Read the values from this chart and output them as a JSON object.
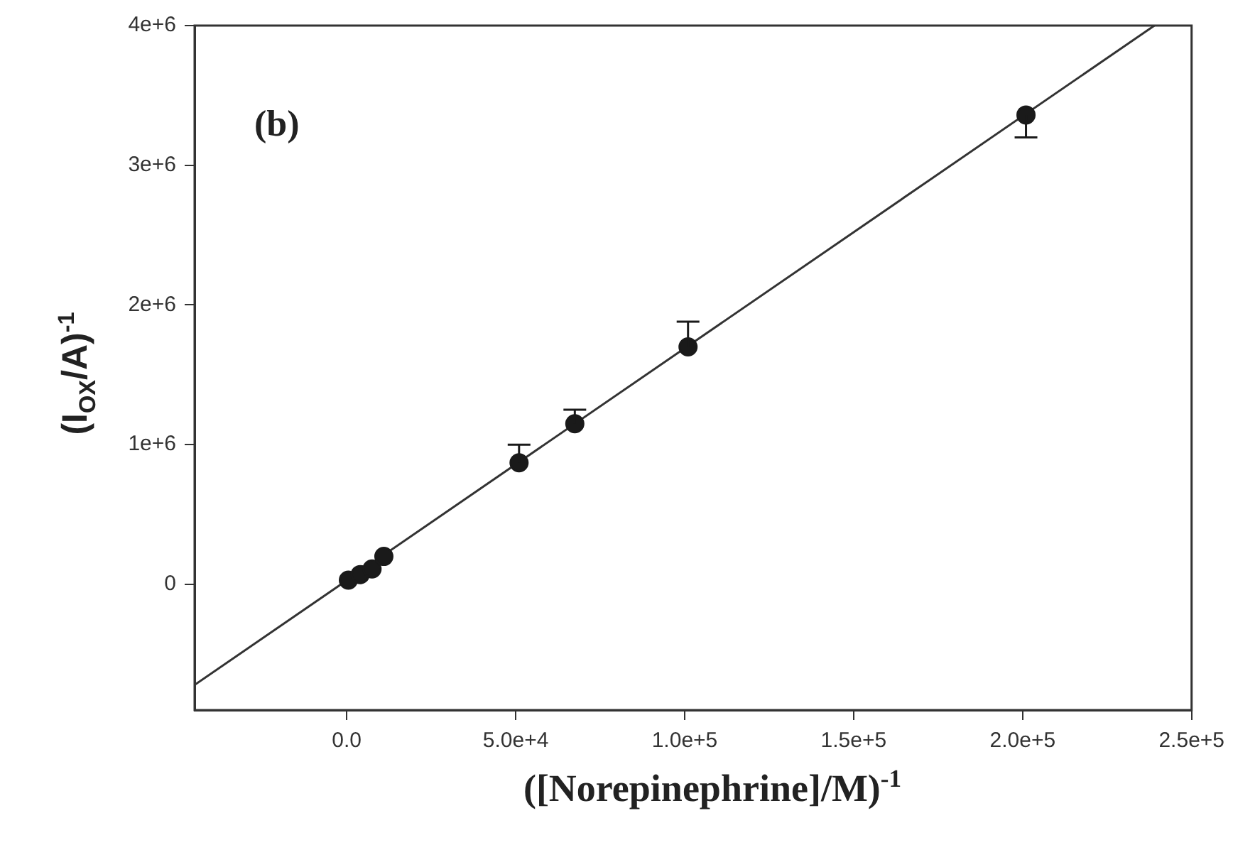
{
  "chart_data": {
    "type": "scatter",
    "xlabel": "([Norepinephrine]/M)$^{-1}$",
    "ylabel": "(I$_{OX}$/A)$^{-1}$",
    "annotations": [
      "(b)"
    ],
    "xlim": [
      -45000,
      250000
    ],
    "xticks": [
      {
        "value": 0,
        "label": "0.0"
      },
      {
        "value": 50000,
        "label": "5.0e+4"
      },
      {
        "value": 100000,
        "label": "1.0e+5"
      },
      {
        "value": 150000,
        "label": "1.5e+5"
      },
      {
        "value": 200000,
        "label": "2.0e+5"
      },
      {
        "value": 250000,
        "label": "2.5e+5"
      }
    ],
    "ylim": [
      -900000,
      4000000
    ],
    "yticks": [
      0,
      {
        "value": 1000000,
        "label": "1e+6"
      },
      {
        "value": 2000000,
        "label": "2e+6"
      },
      {
        "value": 3000000,
        "label": "3e+6"
      },
      {
        "value": 4000000,
        "label": "4e+6"
      }
    ],
    "grid": false,
    "legend": false,
    "marker": "circle",
    "series": [
      {
        "type": "scatter",
        "color": "#1a1a1a",
        "x": [
          500,
          4000,
          7500,
          11000,
          51000,
          67500,
          101000,
          201000
        ],
        "values": [
          30000,
          70000,
          110000,
          200000,
          870000,
          1150000,
          1700000,
          3360000
        ],
        "errors": [
          null,
          null,
          null,
          null,
          [
            870000,
            1000000
          ],
          [
            1150000,
            1250000
          ],
          [
            1700000,
            1880000
          ],
          [
            3200000,
            3360000
          ]
        ]
      },
      {
        "type": "line",
        "color": "#333333",
        "x": [
          -45000,
          239000
        ],
        "values": [
          -720000,
          4000000
        ],
        "marker": "none",
        "line_style": "solid"
      }
    ]
  }
}
